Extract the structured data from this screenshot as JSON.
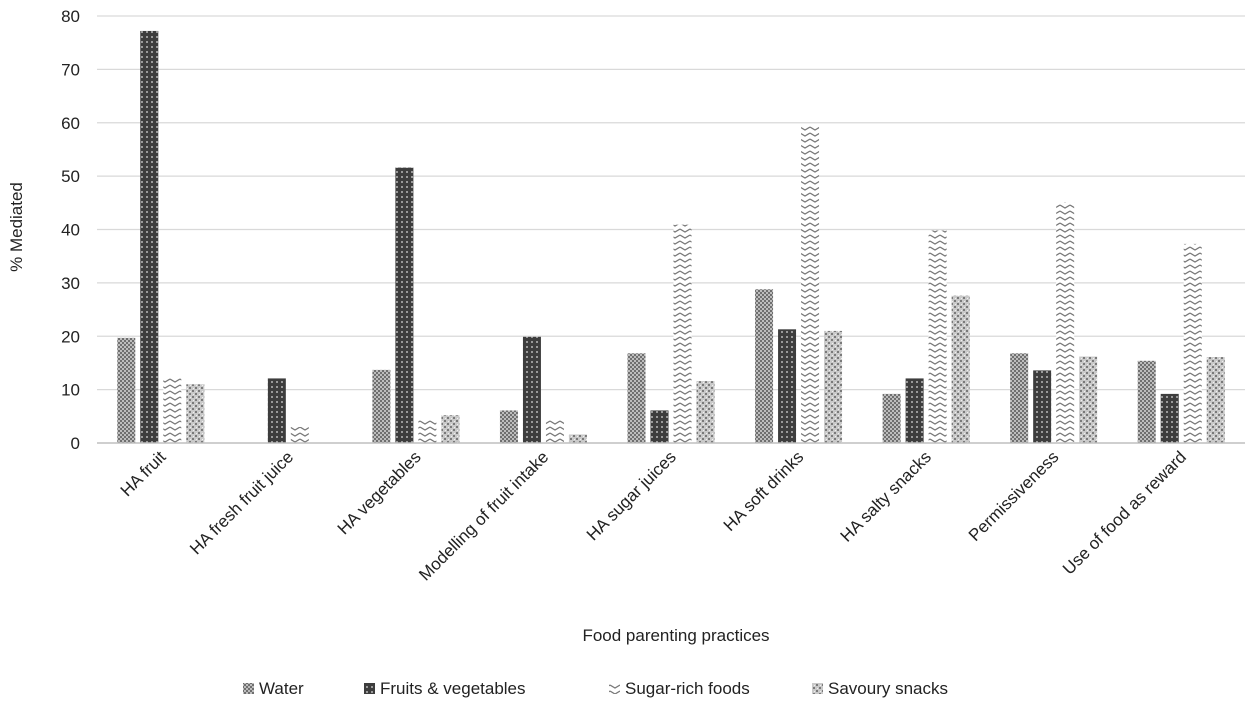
{
  "chart_data": {
    "type": "bar",
    "xlabel": "Food parenting practices",
    "ylabel": "% Mediated",
    "ylim": [
      0,
      80
    ],
    "yticks": [
      0,
      10,
      20,
      30,
      40,
      50,
      60,
      70,
      80
    ],
    "grid": true,
    "legend_position": "bottom",
    "categories": [
      "HA fruit",
      "HA fresh fruit juice",
      "HA vegetables",
      "Modelling of fruit intake",
      "HA sugar juices",
      "HA soft drinks",
      "HA salty snacks",
      "Permissiveness",
      "Use of food as reward"
    ],
    "series": [
      {
        "name": "Water",
        "pattern": "water",
        "values": [
          19.7,
          null,
          13.7,
          6.1,
          16.8,
          28.8,
          9.2,
          16.8,
          15.4
        ]
      },
      {
        "name": "Fruits & vegetables",
        "pattern": "fruitveg",
        "values": [
          77.2,
          12.1,
          51.6,
          19.9,
          6.1,
          21.3,
          12.1,
          13.6,
          9.2
        ]
      },
      {
        "name": "Sugar-rich foods",
        "pattern": "sugar",
        "values": [
          12.2,
          3.0,
          4.4,
          4.3,
          40.9,
          59.3,
          39.8,
          45.1,
          37.3
        ]
      },
      {
        "name": "Savoury snacks",
        "pattern": "savoury",
        "values": [
          11.0,
          null,
          5.2,
          1.6,
          11.6,
          21.0,
          27.6,
          16.2,
          16.1
        ]
      }
    ],
    "colors": {
      "grid": "#d9d9d9",
      "axis": "#bfbfbf",
      "text": "#222222"
    }
  }
}
